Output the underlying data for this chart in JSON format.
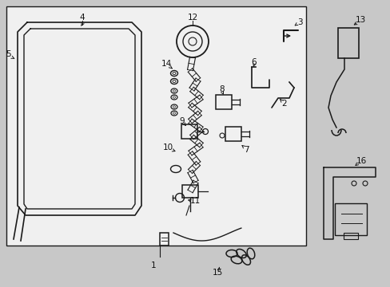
{
  "bg_color": "#c8c8c8",
  "box_bg": "#f0f0f0",
  "line_color": "#1a1a1a",
  "text_color": "#111111",
  "fig_width": 4.89,
  "fig_height": 3.6,
  "dpi": 100,
  "label_fs": 7.5
}
